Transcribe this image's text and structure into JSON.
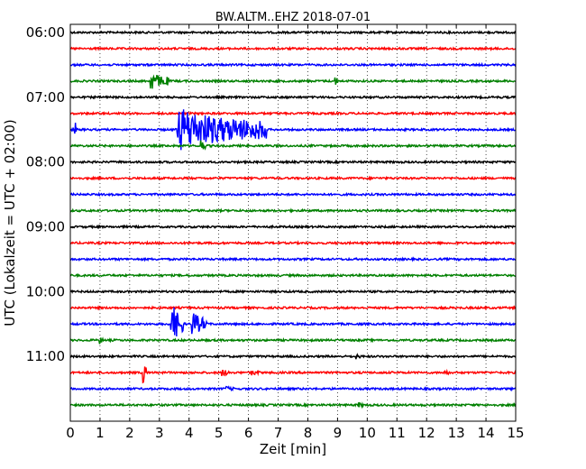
{
  "chart_data": {
    "type": "line",
    "title": "BW.ALTM..EHZ 2018-07-01",
    "xlabel": "Zeit  [min]",
    "ylabel": "UTC (Lokalzeit = UTC + 02:00)",
    "xlim": [
      0,
      15
    ],
    "xticks": [
      0,
      1,
      2,
      3,
      4,
      5,
      6,
      7,
      8,
      9,
      10,
      11,
      12,
      13,
      14,
      15
    ],
    "ylim": [
      "05:52:30",
      "12:00:00"
    ],
    "yticks": [
      "06:00",
      "07:00",
      "08:00",
      "09:00",
      "10:00",
      "11:00"
    ],
    "grid": true,
    "trace_interval_min": 15,
    "trace_colors": [
      "#000000",
      "#ff0000",
      "#0000ff",
      "#008000"
    ],
    "traces": [
      {
        "start": "06:00",
        "events": []
      },
      {
        "start": "06:15",
        "events": []
      },
      {
        "start": "06:30",
        "events": []
      },
      {
        "start": "06:45",
        "events": [
          {
            "t": 2.7,
            "amp": 0.45,
            "dur": 0.6
          },
          {
            "t": 8.9,
            "amp": 0.25,
            "dur": 0.15
          }
        ]
      },
      {
        "start": "07:00",
        "events": []
      },
      {
        "start": "07:15",
        "events": []
      },
      {
        "start": "07:30",
        "events": [
          {
            "t": 0.15,
            "amp": 0.4,
            "dur": 0.1
          },
          {
            "t": 3.6,
            "amp": 1.0,
            "dur": 3.0
          }
        ]
      },
      {
        "start": "07:45",
        "events": [
          {
            "t": 4.4,
            "amp": 0.35,
            "dur": 0.15
          }
        ]
      },
      {
        "start": "08:00",
        "events": []
      },
      {
        "start": "08:15",
        "events": []
      },
      {
        "start": "08:30",
        "events": []
      },
      {
        "start": "08:45",
        "events": []
      },
      {
        "start": "09:00",
        "events": []
      },
      {
        "start": "09:15",
        "events": []
      },
      {
        "start": "09:30",
        "events": []
      },
      {
        "start": "09:45",
        "events": []
      },
      {
        "start": "10:00",
        "events": []
      },
      {
        "start": "10:15",
        "events": []
      },
      {
        "start": "10:30",
        "events": [
          {
            "t": 3.4,
            "amp": 1.0,
            "dur": 0.4
          },
          {
            "t": 4.1,
            "amp": 0.6,
            "dur": 0.5
          }
        ]
      },
      {
        "start": "10:45",
        "events": [
          {
            "t": 1.0,
            "amp": 0.2,
            "dur": 0.1
          }
        ]
      },
      {
        "start": "11:00",
        "events": [
          {
            "t": 9.6,
            "amp": 0.15,
            "dur": 0.2
          }
        ]
      },
      {
        "start": "11:15",
        "events": [
          {
            "t": 2.45,
            "amp": 0.6,
            "dur": 0.12
          },
          {
            "t": 5.1,
            "amp": 0.2,
            "dur": 0.3
          },
          {
            "t": 6.1,
            "amp": 0.15,
            "dur": 0.3
          },
          {
            "t": 12.6,
            "amp": 0.15,
            "dur": 0.2
          }
        ]
      },
      {
        "start": "11:30",
        "events": [
          {
            "t": 5.2,
            "amp": 0.15,
            "dur": 0.3
          }
        ]
      },
      {
        "start": "11:45",
        "events": [
          {
            "t": 9.7,
            "amp": 0.15,
            "dur": 0.2
          }
        ]
      }
    ]
  }
}
